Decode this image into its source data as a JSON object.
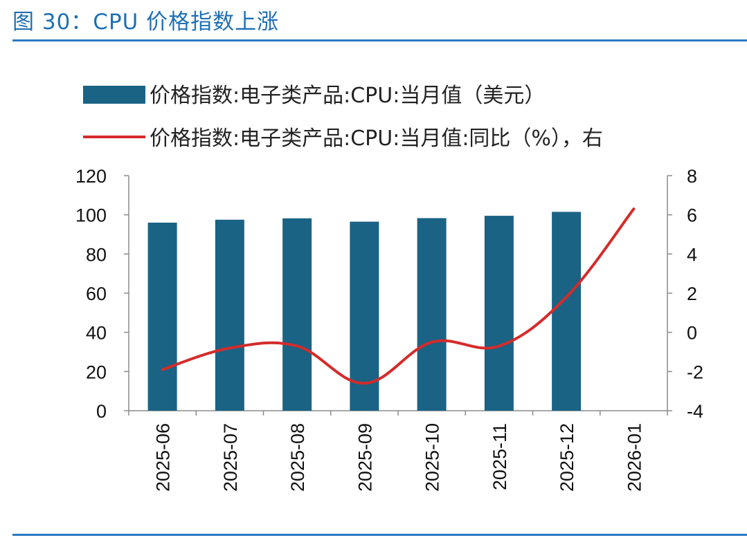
{
  "figure": {
    "title": "图 30：CPU 价格指数上涨"
  },
  "chart_data": {
    "type": "bar+line",
    "categories": [
      "2025-06",
      "2025-07",
      "2025-08",
      "2025-09",
      "2025-10",
      "2025-11",
      "2025-12",
      "2026-01"
    ],
    "series": [
      {
        "name": "价格指数:电子类产品:CPU:当月值（美元）",
        "type": "bar",
        "axis": "left",
        "color": "#1a6384",
        "values": [
          96,
          97.5,
          98.2,
          96.5,
          98.3,
          99.5,
          101.5,
          null
        ]
      },
      {
        "name": "价格指数:电子类产品:CPU:当月值:同比（%），右",
        "type": "line",
        "axis": "right",
        "color": "#d52b2b",
        "values": [
          -1.9,
          -0.8,
          -0.7,
          -2.6,
          -0.5,
          -0.7,
          1.8,
          6.3
        ]
      }
    ],
    "y_left": {
      "min": 0,
      "max": 120,
      "ticks": [
        "0",
        "20",
        "40",
        "60",
        "80",
        "100",
        "120"
      ]
    },
    "y_right": {
      "min": -4,
      "max": 8,
      "ticks": [
        "-4",
        "-2",
        "0",
        "2",
        "4",
        "6",
        "8"
      ]
    },
    "legend_position": "top"
  }
}
